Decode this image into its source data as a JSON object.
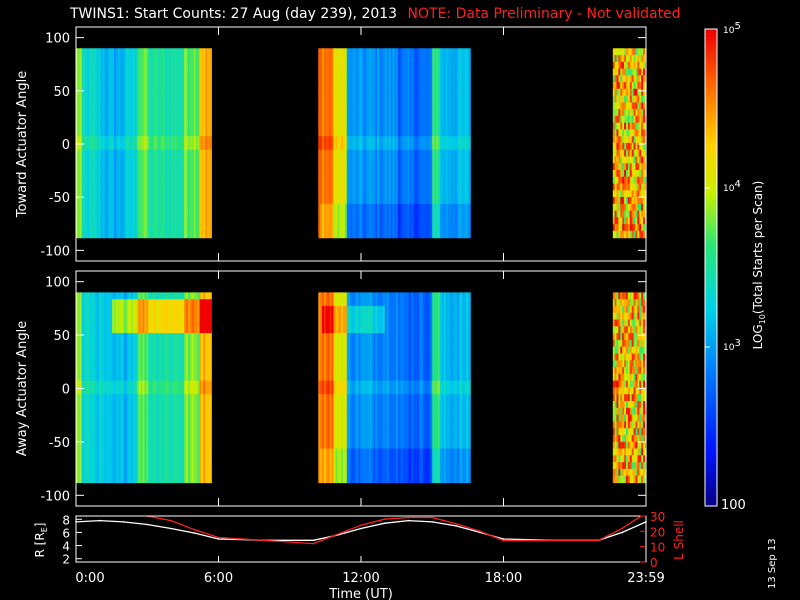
{
  "title": {
    "main": "TWINS1: Start Counts: 27 Aug (day 239), 2013",
    "note": "NOTE: Data Preliminary - Not validated"
  },
  "stamp": "13 Sep 13",
  "colors": {
    "background": "#000000",
    "axes": "#ffffff",
    "note": "#ff2020",
    "lshell": "#ff2020",
    "radius": "#ffffff"
  },
  "chart_data": [
    {
      "type": "heatmap",
      "panel": "top",
      "ylabel": "Toward Actuator Angle",
      "ylim": [
        -110,
        110
      ],
      "ytick_labels": [
        "100",
        "50",
        "0",
        "-50",
        "-100"
      ],
      "ytick_values": [
        100,
        50,
        0,
        -50,
        -100
      ],
      "data_range_angle": [
        -88,
        90
      ],
      "xlim_hours": [
        0,
        24
      ],
      "data_segments_hours": [
        [
          0,
          5.7
        ],
        [
          10.2,
          16.6
        ],
        [
          22.6,
          24
        ]
      ],
      "colormap_log_range": [
        100,
        100000
      ]
    },
    {
      "type": "heatmap",
      "panel": "middle",
      "ylabel": "Away Actuator Angle",
      "ylim": [
        -110,
        110
      ],
      "ytick_labels": [
        "100",
        "50",
        "0",
        "-50",
        "-100"
      ],
      "ytick_values": [
        100,
        50,
        0,
        -50,
        -100
      ],
      "data_range_angle": [
        -88,
        90
      ],
      "xlim_hours": [
        0,
        24
      ],
      "data_segments_hours": [
        [
          0,
          5.7
        ],
        [
          10.2,
          16.6
        ],
        [
          22.6,
          24
        ]
      ],
      "colormap_log_range": [
        100,
        100000
      ]
    },
    {
      "type": "line",
      "panel": "bottom",
      "xlabel": "Time (UT)",
      "xtick_labels": [
        "0:00",
        "6:00",
        "12:00",
        "18:00",
        "23:59"
      ],
      "xtick_values": [
        0,
        6,
        12,
        18,
        24
      ],
      "ylabel_left": "R [R",
      "ylabel_left_sub": "E",
      "ylabel_left_close": "]",
      "ylim_left": [
        1.5,
        8.5
      ],
      "ytick_labels_left": [
        "8",
        "6",
        "4",
        "2"
      ],
      "ytick_values_left": [
        8,
        6,
        4,
        2
      ],
      "ylabel_right": "L Shell",
      "ylim_right": [
        0,
        30
      ],
      "ytick_labels_right": [
        "30",
        "20",
        "10",
        "0"
      ],
      "ytick_values_right": [
        30,
        20,
        10,
        0
      ],
      "series": [
        {
          "axis": "left",
          "x": [
            0,
            1,
            2,
            3,
            4,
            5,
            6,
            8,
            10,
            11,
            12,
            13,
            14,
            15,
            16,
            17,
            18,
            20,
            22,
            23,
            24
          ],
          "y": [
            7.6,
            7.8,
            7.6,
            7.2,
            6.6,
            5.9,
            5.0,
            4.8,
            4.8,
            5.6,
            6.6,
            7.4,
            7.8,
            7.6,
            7.0,
            6.0,
            5.0,
            4.8,
            4.8,
            6.0,
            7.6
          ]
        },
        {
          "axis": "right",
          "x": [
            0,
            1,
            2,
            3,
            4,
            5,
            6,
            8,
            10,
            11,
            12,
            13,
            14,
            15,
            16,
            17,
            18,
            20,
            22,
            23,
            24
          ],
          "y": [
            30,
            31,
            31,
            30,
            27,
            21,
            16,
            14,
            12,
            18,
            24,
            28,
            29,
            29,
            25,
            20,
            14,
            14,
            14,
            22,
            32
          ]
        }
      ]
    },
    {
      "type": "colorbar",
      "label_pre": "LOG",
      "label_sub": "10",
      "label_post": "(Total Starts per Scan)",
      "tick_labels": [
        "10",
        "10",
        "10",
        "100"
      ],
      "tick_exponents": [
        "5",
        "4",
        "3",
        ""
      ],
      "tick_values_log": [
        5,
        4,
        3,
        2
      ],
      "range_log": [
        2,
        5
      ]
    }
  ]
}
